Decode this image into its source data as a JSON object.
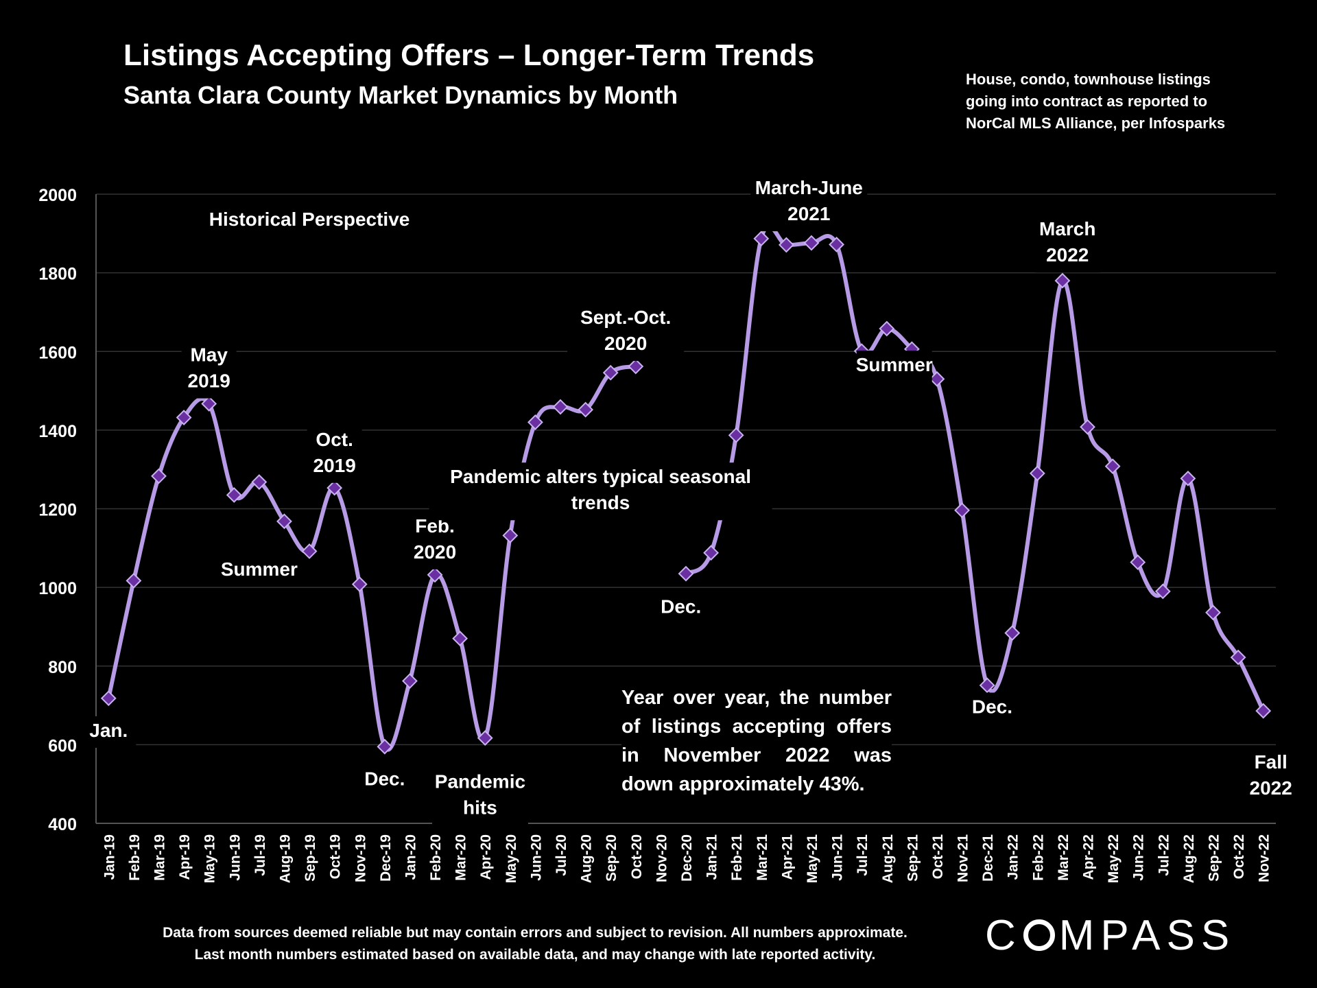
{
  "header": {
    "title": "Listings Accepting Offers – Longer-Term Trends",
    "subtitle": "Santa Clara County Market Dynamics by Month",
    "source_note": "House, condo, townhouse listings going into contract as reported to NorCal MLS Alliance, per Infosparks"
  },
  "footer": {
    "disclaimer_line1": "Data from sources deemed reliable but may contain errors and subject to revision. All numbers approximate.",
    "disclaimer_line2": "Last month numbers estimated based on available data, and may change with late reported activity."
  },
  "brand": {
    "logo_left": "C",
    "logo_right": "MPASS"
  },
  "callout": "Year over year, the number of listings accepting offers in November 2022 was down approximately 43%.",
  "colors": {
    "background": "#000000",
    "line": "#b79be6",
    "marker": "#6a2fa0",
    "marker_stroke": "#c9b2f0",
    "grid": "#333333",
    "text": "#ffffff"
  },
  "chart_data": {
    "type": "line",
    "title": "Listings Accepting Offers – Longer-Term Trends",
    "subtitle": "Santa Clara County Market Dynamics by Month",
    "categories": [
      "Jan-19",
      "Feb-19",
      "Mar-19",
      "Apr-19",
      "May-19",
      "Jun-19",
      "Jul-19",
      "Aug-19",
      "Sep-19",
      "Oct-19",
      "Nov-19",
      "Dec-19",
      "Jan-20",
      "Feb-20",
      "Mar-20",
      "Apr-20",
      "May-20",
      "Jun-20",
      "Jul-20",
      "Aug-20",
      "Sep-20",
      "Oct-20",
      "Nov-20",
      "Dec-20",
      "Jan-21",
      "Feb-21",
      "Mar-21",
      "Apr-21",
      "May-21",
      "Jun-21",
      "Jul-21",
      "Aug-21",
      "Sep-21",
      "Oct-21",
      "Nov-21",
      "Dec-21",
      "Jan-22",
      "Feb-22",
      "Mar-22",
      "Apr-22",
      "May-22",
      "Jun-22",
      "Jul-22",
      "Aug-22",
      "Sep-22",
      "Oct-22",
      "Nov-22"
    ],
    "values": [
      718,
      1017,
      1283,
      1432,
      1467,
      1235,
      1268,
      1168,
      1092,
      1253,
      1008,
      595,
      762,
      1032,
      870,
      617,
      1132,
      1420,
      1459,
      1452,
      1546,
      1562,
      null,
      1035,
      1088,
      1387,
      1887,
      1871,
      1876,
      1872,
      1601,
      1658,
      1606,
      1530,
      1196,
      751,
      884,
      1290,
      1780,
      1408,
      1308,
      1064,
      990,
      1277,
      936,
      822,
      686
    ],
    "ylim": [
      400,
      2000
    ],
    "yticks": [
      400,
      600,
      800,
      1000,
      1200,
      1400,
      1600,
      1800,
      2000
    ],
    "grid": true,
    "annotations": [
      {
        "text": "Historical Perspective",
        "index": 8,
        "value": 1920
      },
      {
        "text": "May 2019",
        "index": 4,
        "value": 1575
      },
      {
        "text": "Oct. 2019",
        "index": 9,
        "value": 1360
      },
      {
        "text": "Summer",
        "index": 6,
        "value": 1030
      },
      {
        "text": "Jan.",
        "index": 0,
        "value": 620
      },
      {
        "text": "Dec.",
        "index": 11,
        "value": 497
      },
      {
        "text": "Feb. 2020",
        "index": 13,
        "value": 1140
      },
      {
        "text": "Pandemic hits",
        "index": 14.8,
        "value": 490
      },
      {
        "text": "Sept.-Oct. 2020",
        "index": 20.6,
        "value": 1670
      },
      {
        "text": "Pandemic alters typical seasonal trends",
        "index": 19.6,
        "value": 1265
      },
      {
        "text": "Dec.",
        "index": 22.8,
        "value": 935
      },
      {
        "text": "March-June 2021",
        "index": 27.9,
        "value": 2000
      },
      {
        "text": "Summer",
        "index": 31.3,
        "value": 1550
      },
      {
        "text": "March 2022",
        "index": 38.2,
        "value": 1895
      },
      {
        "text": "Dec.",
        "index": 35.2,
        "value": 680
      },
      {
        "text": "Fall 2022",
        "index": 46.3,
        "value": 540
      }
    ]
  }
}
